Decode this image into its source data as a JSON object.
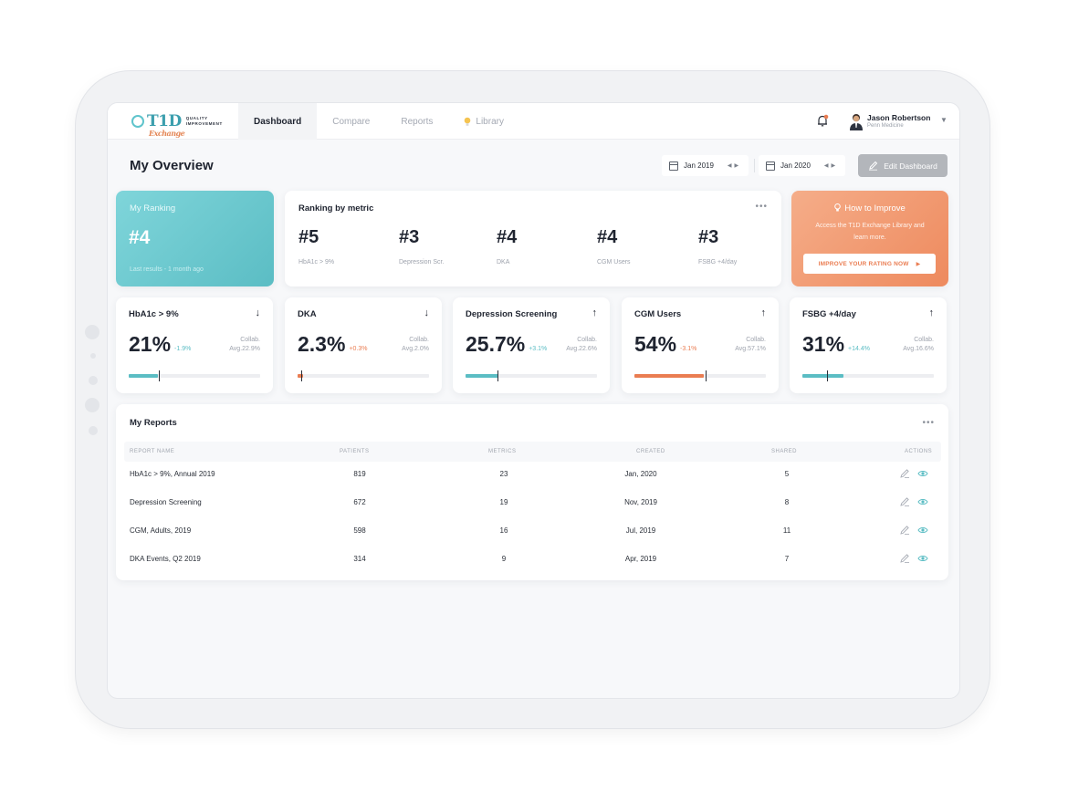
{
  "nav": {
    "logo": {
      "main": "T1D",
      "sub": "Exchange",
      "tag1": "QUALITY",
      "tag2": "IMPROVEMENT"
    },
    "tabs": [
      {
        "label": "Dashboard",
        "active": true
      },
      {
        "label": "Compare",
        "active": false
      },
      {
        "label": "Reports",
        "active": false
      },
      {
        "label": "Library",
        "active": false,
        "icon": "lightbulb-icon"
      }
    ],
    "user": {
      "name": "Jason Robertson",
      "org": "Penn Medicine"
    }
  },
  "header": {
    "title": "My Overview",
    "date_from": "Jan 2019",
    "date_to": "Jan 2020",
    "edit_label": "Edit Dashboard"
  },
  "my_ranking": {
    "label": "My Ranking",
    "value": "#4",
    "sub": "Last results - 1 month ago"
  },
  "ranking_by_metric": {
    "title": "Ranking by metric",
    "items": [
      {
        "value": "#5",
        "label": "HbA1c > 9%"
      },
      {
        "value": "#3",
        "label": "Depression Scr."
      },
      {
        "value": "#4",
        "label": "DKA"
      },
      {
        "value": "#4",
        "label": "CGM Users"
      },
      {
        "value": "#3",
        "label": "FSBG +4/day"
      }
    ]
  },
  "improve": {
    "title": "How to Improve",
    "text": "Access the T1D Exchange Library and learn more.",
    "button": "IMPROVE YOUR RATING NOW"
  },
  "metrics": [
    {
      "title": "HbA1c > 9%",
      "direction": "down",
      "value": "21%",
      "delta": "-1.9%",
      "delta_color": "#5bbdc4",
      "collab_label": "Collab.",
      "collab_avg": "Avg.22.9%",
      "fill_pct": 22,
      "tick_pct": 23,
      "bar_color": "#5bbdc4"
    },
    {
      "title": "DKA",
      "direction": "down",
      "value": "2.3%",
      "delta": "+0.3%",
      "delta_color": "#ea7d52",
      "collab_label": "Collab.",
      "collab_avg": "Avg.2.0%",
      "fill_pct": 4,
      "tick_pct": 3,
      "bar_color": "#ea7d52"
    },
    {
      "title": "Depression Screening",
      "direction": "up",
      "value": "25.7%",
      "delta": "+3.1%",
      "delta_color": "#5bbdc4",
      "collab_label": "Collab.",
      "collab_avg": "Avg.22.6%",
      "fill_pct": 25,
      "tick_pct": 24,
      "bar_color": "#5bbdc4"
    },
    {
      "title": "CGM Users",
      "direction": "up",
      "value": "54%",
      "delta": "-3.1%",
      "delta_color": "#ea7d52",
      "collab_label": "Collab.",
      "collab_avg": "Avg.57.1%",
      "fill_pct": 53,
      "tick_pct": 54,
      "bar_color": "#ea7d52"
    },
    {
      "title": "FSBG +4/day",
      "direction": "up",
      "value": "31%",
      "delta": "+14.4%",
      "delta_color": "#5bbdc4",
      "collab_label": "Collab.",
      "collab_avg": "Avg.16.6%",
      "fill_pct": 31,
      "tick_pct": 19,
      "bar_color": "#5bbdc4"
    }
  ],
  "reports": {
    "title": "My Reports",
    "columns": [
      "REPORT NAME",
      "PATIENTS",
      "METRICS",
      "CREATED",
      "SHARED",
      "ACTIONS"
    ],
    "rows": [
      {
        "name": "HbA1c > 9%, Annual 2019",
        "patients": "819",
        "metrics": "23",
        "created": "Jan, 2020",
        "shared": "5"
      },
      {
        "name": "Depression Screening",
        "patients": "672",
        "metrics": "19",
        "created": "Nov, 2019",
        "shared": "8"
      },
      {
        "name": "CGM, Adults, 2019",
        "patients": "598",
        "metrics": "16",
        "created": "Jul, 2019",
        "shared": "11"
      },
      {
        "name": "DKA Events, Q2 2019",
        "patients": "314",
        "metrics": "9",
        "created": "Apr, 2019",
        "shared": "7"
      }
    ]
  }
}
